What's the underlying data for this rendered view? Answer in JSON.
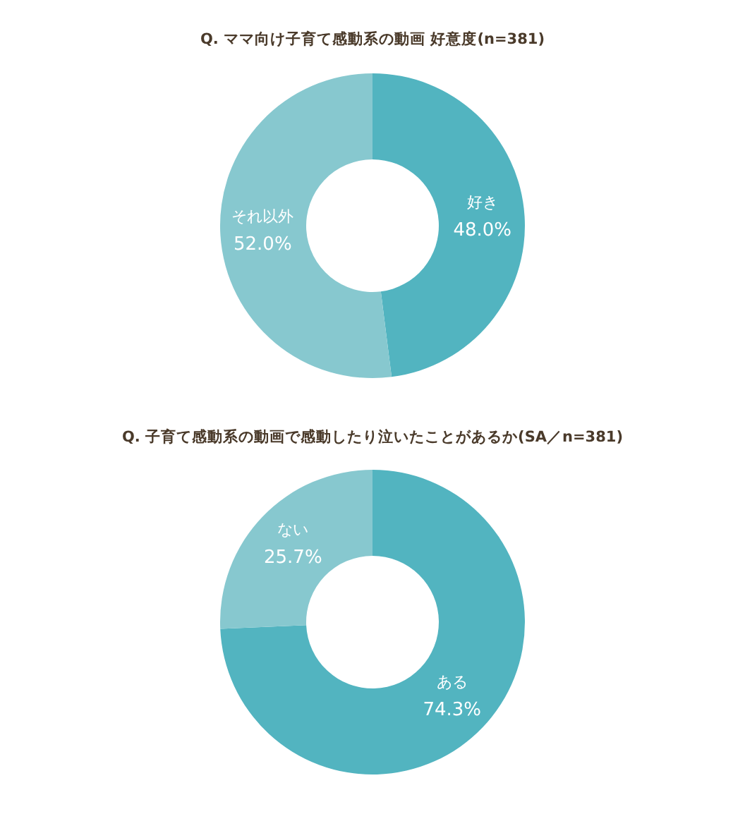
{
  "chart_data": [
    {
      "type": "donut",
      "title": "Q. ママ向け子育て感動系の動画 好意度(n=381)",
      "categories": [
        "好き",
        "それ以外"
      ],
      "values": [
        48.0,
        52.0
      ],
      "colors": [
        "#52b4c0",
        "#87c8cf"
      ],
      "value_labels": [
        "48.0%",
        "52.0%"
      ]
    },
    {
      "type": "donut",
      "title": "Q. 子育て感動系の動画で感動したり泣いたことがあるか(SA／n=381)",
      "categories": [
        "ある",
        "ない"
      ],
      "values": [
        74.3,
        25.7
      ],
      "colors": [
        "#52b4c0",
        "#87c8cf"
      ],
      "value_labels": [
        "74.3%",
        "25.7%"
      ]
    }
  ]
}
